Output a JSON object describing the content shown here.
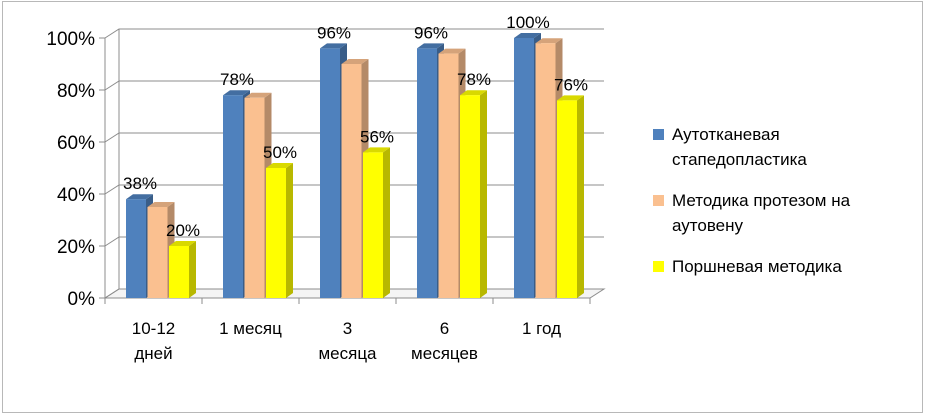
{
  "chart_data": {
    "type": "bar",
    "categories": [
      [
        "10-12",
        "дней"
      ],
      [
        "1 месяц"
      ],
      [
        "3",
        "месяца"
      ],
      [
        "6",
        "месяцев"
      ],
      [
        "1 год"
      ]
    ],
    "series": [
      {
        "name": [
          "Аутотканевая",
          "стапедопластика"
        ],
        "values": [
          38,
          78,
          96,
          96,
          100
        ],
        "color": "#4f81bd"
      },
      {
        "name": [
          "Методика протезом на",
          "аутовену"
        ],
        "values": [
          35,
          77,
          90,
          94,
          98
        ],
        "color": "#fac090"
      },
      {
        "name": [
          "Поршневая методика"
        ],
        "values": [
          20,
          50,
          56,
          78,
          76
        ],
        "color": "#ffff00"
      }
    ],
    "data_labels": [
      {
        "series": 0,
        "index": 0,
        "text": "38%"
      },
      {
        "series": 2,
        "index": 0,
        "text": "20%"
      },
      {
        "series": 0,
        "index": 1,
        "text": "78%"
      },
      {
        "series": 2,
        "index": 1,
        "text": "50%"
      },
      {
        "series": 0,
        "index": 2,
        "text": "96%"
      },
      {
        "series": 2,
        "index": 2,
        "text": "56%"
      },
      {
        "series": 0,
        "index": 3,
        "text": "96%"
      },
      {
        "series": 2,
        "index": 3,
        "text": "78%"
      },
      {
        "series": 0,
        "index": 4,
        "text": "100%"
      },
      {
        "series": 2,
        "index": 4,
        "text": "76%"
      }
    ],
    "y_ticks": [
      "0%",
      "20%",
      "40%",
      "60%",
      "80%",
      "100%"
    ],
    "ylim": [
      0,
      100
    ],
    "grid": true,
    "legend": "right"
  }
}
